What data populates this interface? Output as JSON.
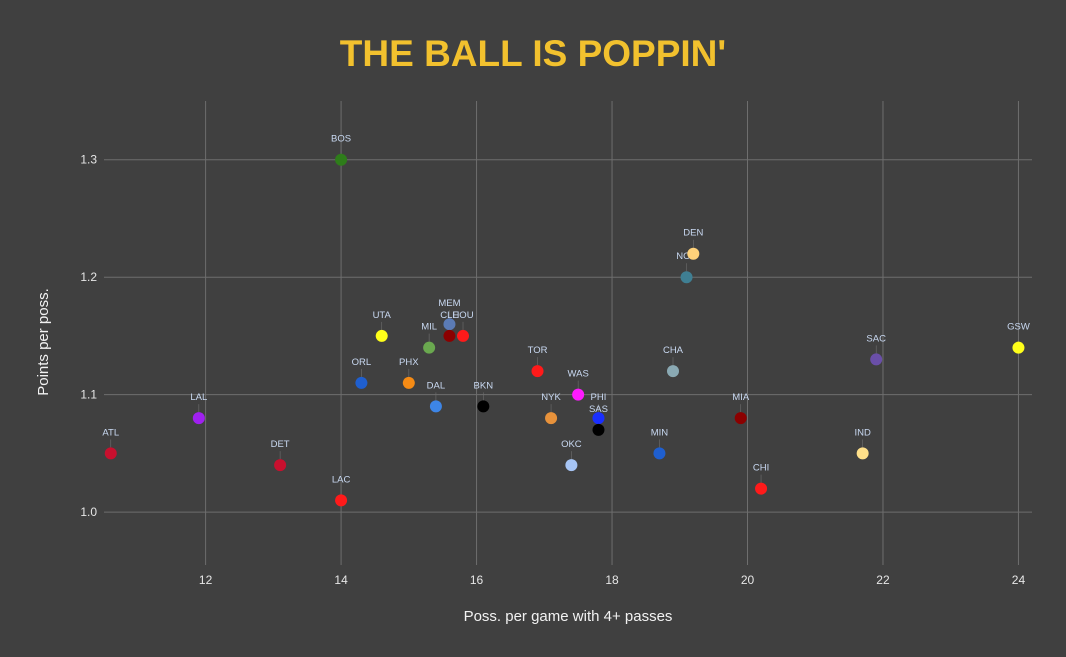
{
  "chart_data": {
    "type": "scatter",
    "title": "THE BALL IS POPPIN'",
    "xlabel": "Poss. per game with 4+ passes",
    "ylabel": "Points per poss.",
    "xlim": [
      10.5,
      24.2
    ],
    "ylim": [
      0.955,
      1.35
    ],
    "xticks": [
      12,
      14,
      16,
      18,
      20,
      22,
      24
    ],
    "yticks": [
      1.0,
      1.1,
      1.2,
      1.3
    ],
    "x_tick_labels": [
      "12",
      "14",
      "16",
      "18",
      "20",
      "22",
      "24"
    ],
    "y_tick_labels": [
      "1.0",
      "1.1",
      "1.2",
      "1.3"
    ],
    "grid": true,
    "colors": {
      "background": "#404040",
      "grid": "#6e6e6e",
      "title": "#f2c12e",
      "tick_text": "#e6e6e6",
      "axis_label": "#f2f2f2",
      "point_label": "#c9d9f2"
    },
    "points": [
      {
        "team": "ATL",
        "x": 10.6,
        "y": 1.05,
        "color": "#c8102e"
      },
      {
        "team": "LAL",
        "x": 11.9,
        "y": 1.08,
        "color": "#a020f0"
      },
      {
        "team": "DET",
        "x": 13.1,
        "y": 1.04,
        "color": "#c8102e"
      },
      {
        "team": "BOS",
        "x": 14.0,
        "y": 1.3,
        "color": "#2e7d1a"
      },
      {
        "team": "LAC",
        "x": 14.0,
        "y": 1.01,
        "color": "#ff1a1a"
      },
      {
        "team": "ORL",
        "x": 14.3,
        "y": 1.11,
        "color": "#1f5fcf"
      },
      {
        "team": "UTA",
        "x": 14.6,
        "y": 1.15,
        "color": "#ffff1a"
      },
      {
        "team": "PHX",
        "x": 15.0,
        "y": 1.11,
        "color": "#f58b15"
      },
      {
        "team": "MIL",
        "x": 15.3,
        "y": 1.14,
        "color": "#6aa84f"
      },
      {
        "team": "DAL",
        "x": 15.4,
        "y": 1.09,
        "color": "#3d85e6"
      },
      {
        "team": "MEM",
        "x": 15.6,
        "y": 1.16,
        "color": "#5b7bb5"
      },
      {
        "team": "CLE",
        "x": 15.6,
        "y": 1.15,
        "color": "#8b0000"
      },
      {
        "team": "HOU",
        "x": 15.8,
        "y": 1.15,
        "color": "#ff1a1a"
      },
      {
        "team": "BKN",
        "x": 16.1,
        "y": 1.09,
        "color": "#000000"
      },
      {
        "team": "TOR",
        "x": 16.9,
        "y": 1.12,
        "color": "#ff1a1a"
      },
      {
        "team": "NYK",
        "x": 17.1,
        "y": 1.08,
        "color": "#e8923b"
      },
      {
        "team": "OKC",
        "x": 17.4,
        "y": 1.04,
        "color": "#a7c5f5"
      },
      {
        "team": "WAS",
        "x": 17.5,
        "y": 1.1,
        "color": "#ff1aff"
      },
      {
        "team": "PHI",
        "x": 17.8,
        "y": 1.08,
        "color": "#1a2fff"
      },
      {
        "team": "SAS",
        "x": 17.8,
        "y": 1.07,
        "color": "#000000"
      },
      {
        "team": "MIN",
        "x": 18.7,
        "y": 1.05,
        "color": "#1f5fcf"
      },
      {
        "team": "CHA",
        "x": 18.9,
        "y": 1.12,
        "color": "#8aa9b3"
      },
      {
        "team": "NOP",
        "x": 19.1,
        "y": 1.2,
        "color": "#3f7f93"
      },
      {
        "team": "DEN",
        "x": 19.2,
        "y": 1.22,
        "color": "#ffd27a"
      },
      {
        "team": "MIA",
        "x": 19.9,
        "y": 1.08,
        "color": "#8b0000"
      },
      {
        "team": "CHI",
        "x": 20.2,
        "y": 1.02,
        "color": "#ff1a1a"
      },
      {
        "team": "IND",
        "x": 21.7,
        "y": 1.05,
        "color": "#ffe08a"
      },
      {
        "team": "SAC",
        "x": 21.9,
        "y": 1.13,
        "color": "#6a4fa8"
      },
      {
        "team": "GSW",
        "x": 24.0,
        "y": 1.14,
        "color": "#ffff1a"
      }
    ]
  }
}
